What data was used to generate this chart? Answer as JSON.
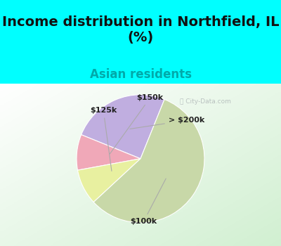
{
  "title": "Income distribution in Northfield, IL\n(%)",
  "subtitle": "Asian residents",
  "title_fontsize": 14,
  "subtitle_fontsize": 12,
  "title_color": "#111111",
  "subtitle_color": "#00AAAA",
  "background_top": "#00FFFF",
  "slices": [
    {
      "label": "> $200k",
      "value": 25,
      "color": "#c0aee0"
    },
    {
      "label": "$150k",
      "value": 9,
      "color": "#f0a8b8"
    },
    {
      "label": "$125k",
      "value": 9,
      "color": "#e8f0a0"
    },
    {
      "label": "$100k",
      "value": 57,
      "color": "#c8d8a8"
    }
  ],
  "startangle": 68,
  "watermark": "City-Data.com",
  "annotation_fontsize": 8
}
